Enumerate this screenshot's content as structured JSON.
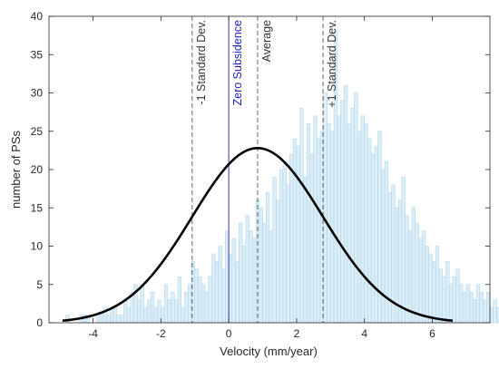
{
  "chart_data": {
    "type": "histogram",
    "title": "",
    "xlabel": "Velocity (mm/year)",
    "ylabel": "number of PSs",
    "xlim": [
      -5.3,
      7.7
    ],
    "ylim": [
      0,
      40
    ],
    "xticks": [
      -4,
      -2,
      0,
      2,
      4,
      6
    ],
    "yticks": [
      0,
      5,
      10,
      15,
      20,
      25,
      30,
      35,
      40
    ],
    "grid": false,
    "legend": "none",
    "bin_width": 0.1,
    "bin_start": -5.0,
    "bin_counts": [
      0,
      0,
      1,
      0,
      0,
      0,
      1,
      1,
      1,
      0,
      0,
      1,
      1,
      2,
      1,
      2,
      2,
      1,
      1,
      3,
      2,
      4,
      5,
      3,
      5,
      2,
      3,
      4,
      2,
      3,
      2,
      5,
      3,
      4,
      3,
      6,
      2,
      4,
      5,
      8,
      7,
      6,
      5,
      4,
      6,
      9,
      8,
      10,
      7,
      12,
      9,
      11,
      8,
      13,
      10,
      14,
      12,
      11,
      16,
      15,
      13,
      17,
      12,
      19,
      16,
      20,
      21,
      18,
      22,
      24,
      23,
      28,
      19,
      26,
      22,
      27,
      24,
      25,
      30,
      26,
      25,
      38,
      27,
      29,
      31,
      26,
      28,
      30,
      25,
      27,
      26,
      24,
      22,
      23,
      25,
      20,
      21,
      17,
      18,
      15,
      16,
      19,
      14,
      12,
      15,
      13,
      11,
      12,
      10,
      9,
      8,
      10,
      7,
      6,
      8,
      5,
      6,
      7,
      5,
      4,
      5,
      4,
      3,
      5,
      4,
      3,
      4,
      2,
      3,
      2,
      3,
      2,
      1,
      2,
      1,
      2,
      1,
      1,
      2,
      1,
      1,
      0,
      1,
      2,
      0,
      1,
      1,
      0,
      1,
      1,
      0,
      1,
      1,
      0,
      1,
      0,
      0,
      1,
      0,
      1,
      0,
      0,
      1,
      0,
      0,
      1,
      0,
      0,
      1,
      0,
      0,
      1,
      0,
      0,
      1,
      1,
      0,
      0,
      1,
      0,
      0,
      0,
      1,
      0,
      1,
      0,
      0,
      0,
      0,
      0,
      0,
      0,
      1,
      0,
      0,
      0,
      0,
      0,
      0,
      0
    ],
    "normal_fit": {
      "mean": 0.85,
      "std": 1.93,
      "peak": 22.8,
      "x_range": [
        -4.9,
        6.6
      ]
    },
    "vertical_lines": [
      {
        "x": -1.08,
        "label": "-1 Standard Dev.",
        "color": "#333333",
        "dashed": true
      },
      {
        "x": 0.0,
        "label": "Zero Subsidence",
        "color": "#1f1fbf",
        "dashed": false
      },
      {
        "x": 0.85,
        "label": "Average",
        "color": "#333333",
        "dashed": true
      },
      {
        "x": 2.78,
        "label": "+1 Standard Dev.",
        "color": "#333333",
        "dashed": true
      }
    ],
    "colors": {
      "bar_fill": "#dbeef8",
      "bar_edge": "#a9d2ea",
      "fit_curve": "#000000"
    }
  }
}
